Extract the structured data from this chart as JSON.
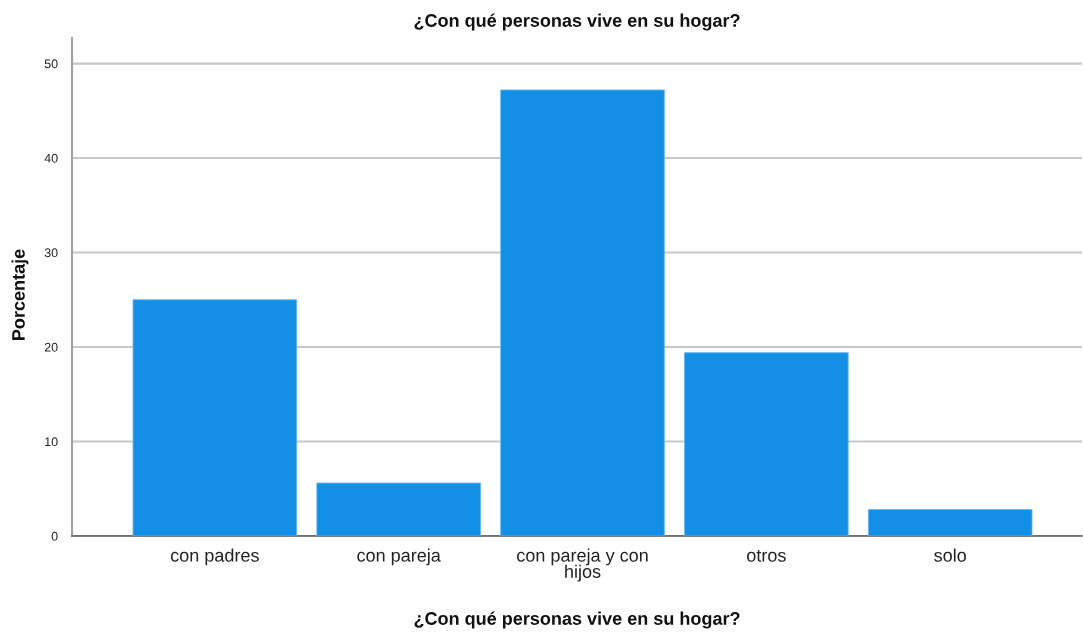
{
  "chart_data": {
    "type": "bar",
    "title": "¿Con qué personas vive en su hogar?",
    "xlabel": "¿Con qué personas vive en su hogar?",
    "ylabel": "Porcentaje",
    "categories": [
      "con padres",
      "con pareja",
      "con pareja y con\nhijos",
      "otros",
      "solo"
    ],
    "values": [
      25.0,
      5.6,
      47.2,
      19.4,
      2.8
    ],
    "color": "#1390e6",
    "ylim": [
      0,
      52.7
    ],
    "yticks": [
      0,
      10,
      20,
      30,
      40,
      50
    ],
    "grid": "y",
    "legend": false
  }
}
